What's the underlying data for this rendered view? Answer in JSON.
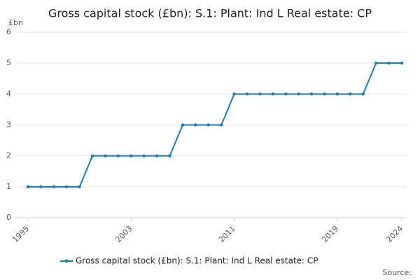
{
  "chart_data": {
    "type": "line",
    "title": "Gross capital stock (£bn): S.1: Plant: Ind L Real estate: CP",
    "y_label": "£bn",
    "source": "Source:",
    "x": [
      1995,
      1996,
      1997,
      1998,
      1999,
      2000,
      2001,
      2002,
      2003,
      2004,
      2005,
      2006,
      2007,
      2008,
      2009,
      2010,
      2011,
      2012,
      2013,
      2014,
      2015,
      2016,
      2017,
      2018,
      2019,
      2020,
      2021,
      2022,
      2023,
      2024
    ],
    "xlim": [
      1995,
      2024
    ],
    "xticks": [
      1995,
      2003,
      2011,
      2019,
      2024
    ],
    "ylim": [
      0,
      6
    ],
    "yticks": [
      0,
      1,
      2,
      3,
      4,
      5,
      6
    ],
    "grid": true,
    "series": [
      {
        "name": "Gross capital stock (£bn): S.1: Plant: Ind L Real estate: CP",
        "color": "#1a7ab4",
        "values": [
          1,
          1,
          1,
          1,
          1,
          2,
          2,
          2,
          2,
          2,
          2,
          2,
          3,
          3,
          3,
          3,
          4,
          4,
          4,
          4,
          4,
          4,
          4,
          4,
          4,
          4,
          4,
          5,
          5,
          5
        ]
      }
    ]
  }
}
